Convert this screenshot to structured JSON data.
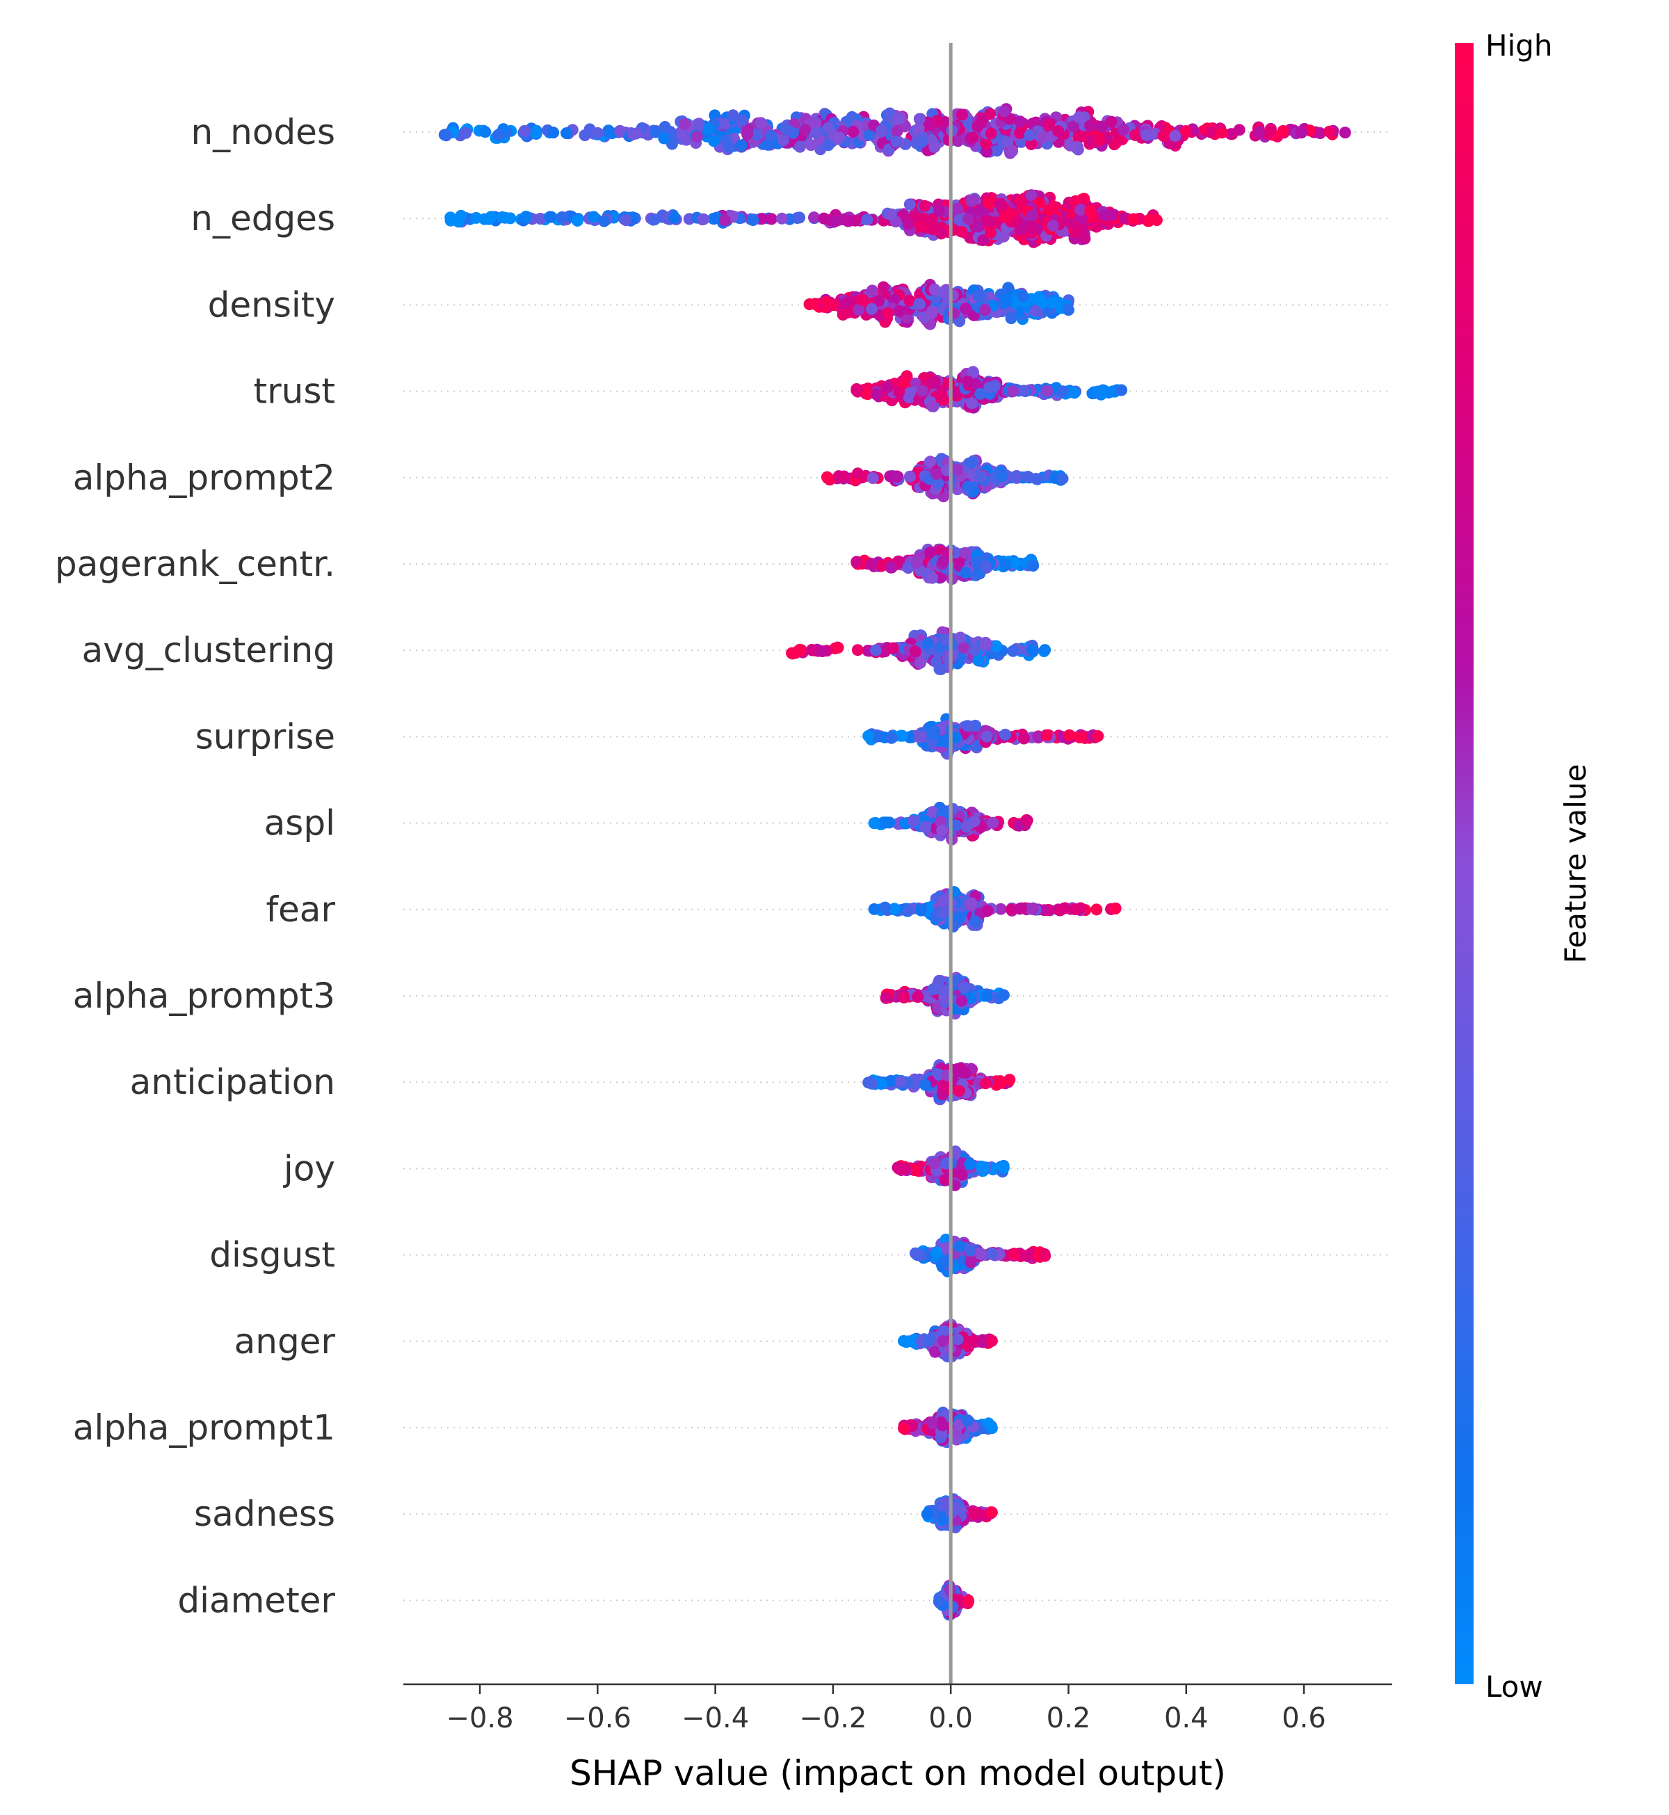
{
  "chart_data": {
    "type": "scatter",
    "subtype": "shap-beeswarm",
    "xlabel": "SHAP value (impact on model output)",
    "xlim": [
      -0.93,
      0.75
    ],
    "xticks": [
      -0.8,
      -0.6,
      -0.4,
      -0.2,
      0.0,
      0.2,
      0.4,
      0.6
    ],
    "xtick_labels": [
      "−0.8",
      "−0.6",
      "−0.4",
      "−0.2",
      "0.0",
      "0.2",
      "0.4",
      "0.6"
    ],
    "zero_line": 0.0,
    "features": [
      {
        "name": "n_nodes",
        "min": -0.86,
        "max": 0.67,
        "core_lo": -0.45,
        "core_hi": 0.35,
        "spread": 0.55,
        "high_side": "right"
      },
      {
        "name": "n_edges",
        "min": -0.85,
        "max": 0.35,
        "core_lo": -0.05,
        "core_hi": 0.25,
        "spread": 0.55,
        "high_side": "right"
      },
      {
        "name": "density",
        "min": -0.24,
        "max": 0.2,
        "core_lo": -0.16,
        "core_hi": 0.15,
        "spread": 0.5,
        "high_side": "left"
      },
      {
        "name": "trust",
        "min": -0.16,
        "max": 0.29,
        "core_lo": -0.1,
        "core_hi": 0.08,
        "spread": 0.45,
        "high_side": "left"
      },
      {
        "name": "alpha_prompt2",
        "min": -0.21,
        "max": 0.19,
        "core_lo": -0.05,
        "core_hi": 0.08,
        "spread": 0.45,
        "high_side": "left"
      },
      {
        "name": "pagerank_centr.",
        "min": -0.16,
        "max": 0.14,
        "core_lo": -0.06,
        "core_hi": 0.06,
        "spread": 0.42,
        "high_side": "left"
      },
      {
        "name": "avg_clustering",
        "min": -0.27,
        "max": 0.16,
        "core_lo": -0.07,
        "core_hi": 0.06,
        "spread": 0.45,
        "high_side": "left"
      },
      {
        "name": "surprise",
        "min": -0.14,
        "max": 0.25,
        "core_lo": -0.05,
        "core_hi": 0.06,
        "spread": 0.42,
        "high_side": "right"
      },
      {
        "name": "aspl",
        "min": -0.13,
        "max": 0.13,
        "core_lo": -0.05,
        "core_hi": 0.05,
        "spread": 0.42,
        "high_side": "right"
      },
      {
        "name": "fear",
        "min": -0.13,
        "max": 0.28,
        "core_lo": -0.03,
        "core_hi": 0.05,
        "spread": 0.42,
        "high_side": "right"
      },
      {
        "name": "alpha_prompt3",
        "min": -0.11,
        "max": 0.09,
        "core_lo": -0.03,
        "core_hi": 0.03,
        "spread": 0.42,
        "high_side": "left"
      },
      {
        "name": "anticipation",
        "min": -0.14,
        "max": 0.1,
        "core_lo": -0.04,
        "core_hi": 0.04,
        "spread": 0.4,
        "high_side": "right"
      },
      {
        "name": "joy",
        "min": -0.09,
        "max": 0.09,
        "core_lo": -0.03,
        "core_hi": 0.03,
        "spread": 0.4,
        "high_side": "left"
      },
      {
        "name": "disgust",
        "min": -0.06,
        "max": 0.16,
        "core_lo": -0.02,
        "core_hi": 0.04,
        "spread": 0.4,
        "high_side": "right"
      },
      {
        "name": "anger",
        "min": -0.08,
        "max": 0.07,
        "core_lo": -0.03,
        "core_hi": 0.03,
        "spread": 0.4,
        "high_side": "right"
      },
      {
        "name": "alpha_prompt1",
        "min": -0.08,
        "max": 0.07,
        "core_lo": -0.03,
        "core_hi": 0.03,
        "spread": 0.4,
        "high_side": "left"
      },
      {
        "name": "sadness",
        "min": -0.04,
        "max": 0.07,
        "core_lo": -0.02,
        "core_hi": 0.02,
        "spread": 0.36,
        "high_side": "right"
      },
      {
        "name": "diameter",
        "min": -0.02,
        "max": 0.03,
        "core_lo": -0.01,
        "core_hi": 0.01,
        "spread": 0.34,
        "high_side": "right"
      }
    ],
    "colorbar": {
      "title": "Feature value",
      "high_label": "High",
      "low_label": "Low",
      "low_color": "#008bfb",
      "high_color": "#ff0052"
    }
  }
}
